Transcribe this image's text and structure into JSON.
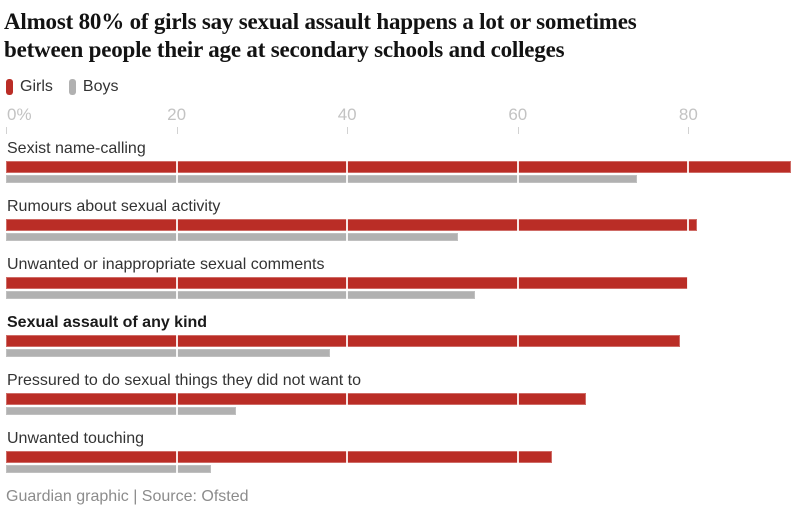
{
  "header": {
    "title": "Almost 80% of girls say sexual assault happens a lot or sometimes between people their age at secondary schools and colleges",
    "title_lines": [
      "Almost 80% of girls say sexual assault happens a lot or sometimes",
      "between people their age at secondary schools and colleges"
    ]
  },
  "legend": [
    {
      "label": "Girls",
      "color": "#ba2d26"
    },
    {
      "label": "Boys",
      "color": "#b1b1b1"
    }
  ],
  "chart_data": {
    "type": "bar",
    "orientation": "horizontal",
    "unit": "percent",
    "title": "Almost 80% of girls say sexual assault happens a lot or sometimes between people their age at secondary schools and colleges",
    "xlim": [
      0,
      93
    ],
    "grid": true,
    "legend_position": "top-left",
    "axis_ticks": [
      {
        "label": "0%",
        "value": 0
      },
      {
        "label": "20",
        "value": 20
      },
      {
        "label": "40",
        "value": 40
      },
      {
        "label": "60",
        "value": 60
      },
      {
        "label": "80",
        "value": 80
      }
    ],
    "categories": [
      "Sexist name-calling",
      "Rumours about sexual activity",
      "Unwanted or inappropriate sexual comments",
      "Sexual assault of any kind",
      "Pressured to do sexual things they did not want to",
      "Unwanted touching"
    ],
    "emphasis_index": 3,
    "series": [
      {
        "name": "Girls",
        "color": "#ba2d26",
        "values": [
          92,
          81,
          80,
          79,
          68,
          64
        ]
      },
      {
        "name": "Boys",
        "color": "#b1b1b1",
        "values": [
          74,
          53,
          55,
          38,
          27,
          24
        ]
      }
    ]
  },
  "footer": {
    "credit": "Guardian graphic | Source: Ofsted"
  }
}
